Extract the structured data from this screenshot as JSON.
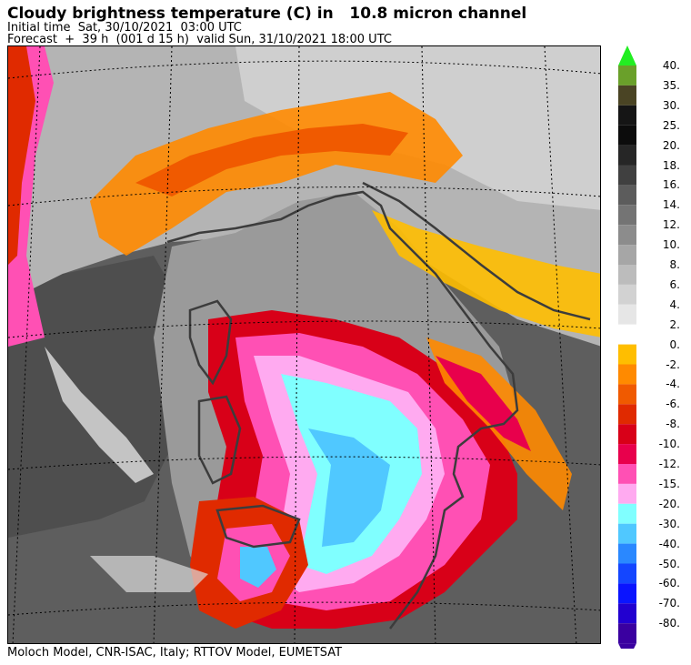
{
  "header": {
    "title": "Cloudy brightness temperature (C) in   10.8 micron channel",
    "initial_time": "Initial time  Sat, 30/10/2021  03:00 UTC",
    "forecast": "Forecast  +  39 h  (001 d 15 h)  valid Sun, 31/10/2021 18:00 UTC"
  },
  "footer": "Moloch Model, CNR-ISAC, Italy; RTTOV Model, EUMETSAT",
  "colorbar": {
    "levels": [
      {
        "label": "40.",
        "color": "#6aa02a"
      },
      {
        "label": "35.",
        "color": "#4a4424"
      },
      {
        "label": "30.",
        "color": "#151515"
      },
      {
        "label": "25.",
        "color": "#0c0c0c"
      },
      {
        "label": "20.",
        "color": "#262626"
      },
      {
        "label": "18.",
        "color": "#404040"
      },
      {
        "label": "16.",
        "color": "#5c5c5c"
      },
      {
        "label": "14.",
        "color": "#747474"
      },
      {
        "label": "12.",
        "color": "#8c8c8c"
      },
      {
        "label": "10.",
        "color": "#a6a6a6"
      },
      {
        "label": "8.",
        "color": "#bcbcbc"
      },
      {
        "label": "6.",
        "color": "#d2d2d2"
      },
      {
        "label": "4.",
        "color": "#e6e6e6"
      },
      {
        "label": "2.",
        "color": "#ffffff"
      },
      {
        "label": "0.",
        "color": "#ffbe00"
      },
      {
        "label": "-2.",
        "color": "#ff8a00"
      },
      {
        "label": "-4.",
        "color": "#f05a00"
      },
      {
        "label": "-6.",
        "color": "#e02a00"
      },
      {
        "label": "-8.",
        "color": "#d80018"
      },
      {
        "label": "-10.",
        "color": "#e8004c"
      },
      {
        "label": "-12.",
        "color": "#ff50b4"
      },
      {
        "label": "-15.",
        "color": "#ffaaf0"
      },
      {
        "label": "-20.",
        "color": "#80ffff"
      },
      {
        "label": "-30.",
        "color": "#50c8ff"
      },
      {
        "label": "-40.",
        "color": "#2a88ff"
      },
      {
        "label": "-50.",
        "color": "#1446ff"
      },
      {
        "label": "-60.",
        "color": "#0a14ff"
      },
      {
        "label": "-70.",
        "color": "#2200d0"
      },
      {
        "label": "-80.",
        "color": "#3a00a0"
      }
    ],
    "top_arrow_color": "#22ee22",
    "bottom_arrow_color": "#3a00a0"
  }
}
